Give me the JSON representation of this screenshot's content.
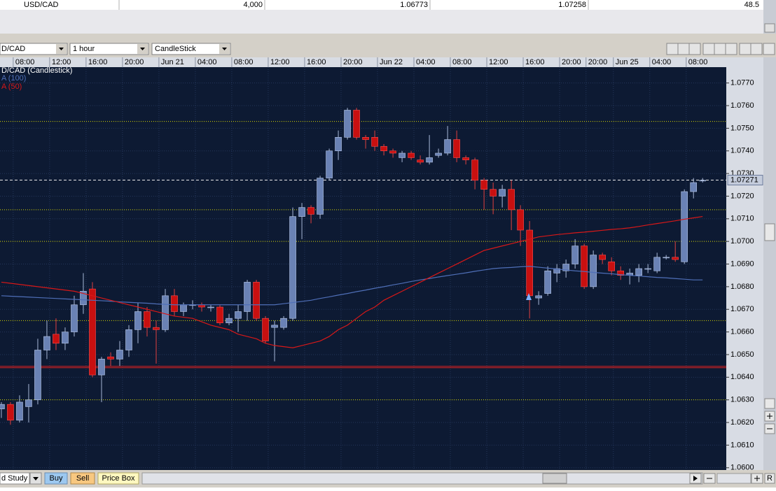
{
  "ticker": {
    "symbol": "USD/CAD",
    "amount": "4,000",
    "bid": "1.06773",
    "ask": "1.07258",
    "spread": "48.5"
  },
  "toolbar": {
    "symbol": "D/CAD",
    "interval": "1 hour",
    "chart_style": "CandleStick"
  },
  "bottom_bar": {
    "study": "d Study",
    "buy": "Buy",
    "sell": "Sell",
    "price_box": "Price Box",
    "reset": "R"
  },
  "chart_data": {
    "type": "candlestick",
    "series": [
      {
        "name": "D/CAD (Candlestick)",
        "up_color": "#6a82b5",
        "down_color": "#c81010",
        "open": [
          1.0626,
          1.0628,
          1.0621,
          1.0627,
          1.063,
          1.0652,
          1.0659,
          1.0655,
          1.066,
          1.0672,
          1.0679,
          1.0641,
          1.0649,
          1.0648,
          1.0652,
          1.0661,
          1.0669,
          1.0662,
          1.0661,
          1.0676,
          1.0669,
          1.0672,
          1.0672,
          1.0671,
          1.0671,
          1.0664,
          1.0666,
          1.0669,
          1.0682,
          1.0666,
          1.0662,
          1.0662,
          1.0666,
          1.0711,
          1.0715,
          1.0712,
          1.0728,
          1.074,
          1.0746,
          1.0758,
          1.0746,
          1.0746,
          1.0742,
          1.074,
          1.0737,
          1.0739,
          1.0736,
          1.0735,
          1.0738,
          1.0739,
          1.0745,
          1.0737,
          1.0736,
          1.0727,
          1.0723,
          1.072,
          1.0723,
          1.0714,
          1.0705,
          1.0675,
          1.0677,
          1.0686,
          1.0687,
          1.069,
          1.0698,
          1.068,
          1.0694,
          1.0691,
          1.0687,
          1.0685,
          1.0685,
          1.0688,
          1.0687,
          1.0693,
          1.0693,
          1.0691,
          1.0722,
          1.0727
        ],
        "high": [
          1.0629,
          1.0629,
          1.0632,
          1.0637,
          1.0657,
          1.0665,
          1.0666,
          1.0662,
          1.0676,
          1.0686,
          1.0682,
          1.0649,
          1.0651,
          1.0656,
          1.0663,
          1.0673,
          1.0671,
          1.0665,
          1.0679,
          1.0679,
          1.0673,
          1.0674,
          1.0673,
          1.0672,
          1.0672,
          1.0668,
          1.0672,
          1.0683,
          1.0683,
          1.0667,
          1.0665,
          1.0667,
          1.0715,
          1.0717,
          1.0716,
          1.0729,
          1.0741,
          1.0749,
          1.0759,
          1.0759,
          1.0747,
          1.0749,
          1.0743,
          1.0741,
          1.074,
          1.074,
          1.0738,
          1.0747,
          1.0741,
          1.0751,
          1.0749,
          1.0738,
          1.0737,
          1.0728,
          1.0726,
          1.0725,
          1.0727,
          1.0716,
          1.0709,
          1.0678,
          1.0689,
          1.069,
          1.0692,
          1.0701,
          1.0699,
          1.0696,
          1.0695,
          1.0693,
          1.0689,
          1.0688,
          1.069,
          1.069,
          1.0695,
          1.0694,
          1.07,
          1.0723,
          1.0728,
          1.0728
        ],
        "low": [
          1.0622,
          1.0619,
          1.062,
          1.062,
          1.0628,
          1.0648,
          1.0652,
          1.0652,
          1.0658,
          1.0668,
          1.064,
          1.0629,
          1.0645,
          1.0645,
          1.0649,
          1.0655,
          1.0658,
          1.0646,
          1.066,
          1.0667,
          1.0667,
          1.067,
          1.0669,
          1.0669,
          1.0663,
          1.0663,
          1.066,
          1.0665,
          1.0665,
          1.0655,
          1.0647,
          1.0661,
          1.0665,
          1.0701,
          1.0708,
          1.071,
          1.0727,
          1.0736,
          1.0745,
          1.0745,
          1.0741,
          1.074,
          1.0738,
          1.0737,
          1.0735,
          1.0736,
          1.0734,
          1.0734,
          1.0737,
          1.0738,
          1.0735,
          1.0734,
          1.0723,
          1.0714,
          1.0712,
          1.0715,
          1.0705,
          1.0698,
          1.0666,
          1.0672,
          1.0676,
          1.0682,
          1.0684,
          1.0688,
          1.0679,
          1.0679,
          1.069,
          1.0685,
          1.0683,
          1.0681,
          1.0682,
          1.0686,
          1.0686,
          1.0692,
          1.0691,
          1.069,
          1.0719,
          1.0726
        ],
        "close": [
          1.0628,
          1.0621,
          1.0629,
          1.063,
          1.0652,
          1.0658,
          1.0655,
          1.066,
          1.0672,
          1.0678,
          1.0641,
          1.0648,
          1.0648,
          1.0652,
          1.0661,
          1.0669,
          1.0662,
          1.0661,
          1.0676,
          1.0669,
          1.0672,
          1.0672,
          1.0671,
          1.0671,
          1.0664,
          1.0666,
          1.0669,
          1.0682,
          1.0666,
          1.0656,
          1.0663,
          1.0666,
          1.0711,
          1.0715,
          1.0712,
          1.0728,
          1.074,
          1.0746,
          1.0758,
          1.0746,
          1.0745,
          1.0742,
          1.074,
          1.0739,
          1.0739,
          1.0737,
          1.0735,
          1.0737,
          1.0739,
          1.0745,
          1.0737,
          1.0736,
          1.0727,
          1.0723,
          1.072,
          1.0723,
          1.0714,
          1.0705,
          1.0676,
          1.0676,
          1.0687,
          1.0688,
          1.069,
          1.0698,
          1.068,
          1.0694,
          1.0692,
          1.0687,
          1.0685,
          1.0686,
          1.0688,
          1.0688,
          1.0693,
          1.0693,
          1.0692,
          1.0722,
          1.0726,
          1.0727
        ]
      },
      {
        "name": "A (100)",
        "color": "#4f6fb8",
        "values": [
          1.0676,
          1.06758,
          1.06756,
          1.06754,
          1.06752,
          1.0675,
          1.06748,
          1.06746,
          1.06744,
          1.06742,
          1.0674,
          1.06738,
          1.06736,
          1.06733,
          1.06731,
          1.06729,
          1.06727,
          1.06724,
          1.06722,
          1.0672,
          1.0672,
          1.0672,
          1.0672,
          1.0672,
          1.0672,
          1.0672,
          1.0672,
          1.0672,
          1.0672,
          1.0672,
          1.0672,
          1.06725,
          1.0673,
          1.06735,
          1.0674,
          1.06748,
          1.06755,
          1.06763,
          1.0677,
          1.06778,
          1.06785,
          1.06793,
          1.068,
          1.06808,
          1.06815,
          1.06823,
          1.0683,
          1.06836,
          1.06843,
          1.06849,
          1.06855,
          1.06861,
          1.06868,
          1.06874,
          1.0688,
          1.06883,
          1.06885,
          1.06888,
          1.0689,
          1.06886,
          1.06882,
          1.06878,
          1.06874,
          1.0687,
          1.06867,
          1.06863,
          1.0686,
          1.06857,
          1.06853,
          1.0685,
          1.06847,
          1.06844,
          1.06841,
          1.06839,
          1.06836,
          1.06833,
          1.0683,
          1.0683
        ]
      },
      {
        "name": "A (50)",
        "color": "#d81818",
        "values": [
          1.0682,
          1.06815,
          1.0681,
          1.06805,
          1.068,
          1.06795,
          1.0679,
          1.06785,
          1.0678,
          1.0677,
          1.0676,
          1.0675,
          1.0674,
          1.0673,
          1.0672,
          1.0671,
          1.067,
          1.0669,
          1.0668,
          1.0667,
          1.06665,
          1.0666,
          1.06645,
          1.0663,
          1.0662,
          1.0661,
          1.0659,
          1.0658,
          1.0657,
          1.0655,
          1.0654,
          1.06535,
          1.0653,
          1.0654,
          1.0655,
          1.0656,
          1.0658,
          1.0661,
          1.0663,
          1.0666,
          1.0669,
          1.0671,
          1.0674,
          1.0676,
          1.0678,
          1.068,
          1.0682,
          1.0684,
          1.0686,
          1.0688,
          1.069,
          1.0692,
          1.0694,
          1.0696,
          1.0697,
          1.0698,
          1.0699,
          1.07,
          1.0701,
          1.0702,
          1.07025,
          1.0703,
          1.07034,
          1.07038,
          1.07041,
          1.07045,
          1.07049,
          1.07053,
          1.07056,
          1.0706,
          1.07066,
          1.07073,
          1.07079,
          1.07085,
          1.07091,
          1.07098,
          1.07104,
          1.0711
        ]
      }
    ],
    "last_price": 1.07271,
    "levels": [
      1.0753,
      1.0714,
      1.07,
      1.0665,
      1.063
    ],
    "level_color": "#d8d800",
    "support": 1.06445,
    "support_color": "#d82020",
    "xlim": [
      -0.15,
      79.6
    ],
    "xticks": [
      {
        "value": 1.3,
        "label": "08:00"
      },
      {
        "value": 5.3,
        "label": "12:00"
      },
      {
        "value": 9.3,
        "label": "16:00"
      },
      {
        "value": 13.3,
        "label": "20:00"
      },
      {
        "value": 17.3,
        "label": "Jun 21"
      },
      {
        "value": 21.3,
        "label": "04:00"
      },
      {
        "value": 25.3,
        "label": "08:00"
      },
      {
        "value": 29.3,
        "label": "12:00"
      },
      {
        "value": 33.3,
        "label": "16:00"
      },
      {
        "value": 37.3,
        "label": "20:00"
      },
      {
        "value": 41.3,
        "label": "Jun 22"
      },
      {
        "value": 45.3,
        "label": "04:00"
      },
      {
        "value": 49.3,
        "label": "08:00"
      },
      {
        "value": 53.3,
        "label": "12:00"
      },
      {
        "value": 57.3,
        "label": "16:00"
      },
      {
        "value": 61.3,
        "label": "20:00"
      },
      {
        "value": 64.2,
        "label": "20:00"
      },
      {
        "value": 67.2,
        "label": "Jun 25"
      },
      {
        "value": 71.2,
        "label": "04:00"
      },
      {
        "value": 75.2,
        "label": "08:00"
      }
    ],
    "ylim": [
      1.0599,
      1.0777
    ],
    "yticks": [
      {
        "value": 1.077,
        "label": "1.0770"
      },
      {
        "value": 1.076,
        "label": "1.0760"
      },
      {
        "value": 1.075,
        "label": "1.0750"
      },
      {
        "value": 1.074,
        "label": "1.0740"
      },
      {
        "value": 1.073,
        "label": "1.0730"
      },
      {
        "value": 1.072,
        "label": "1.0720"
      },
      {
        "value": 1.071,
        "label": "1.0710"
      },
      {
        "value": 1.07,
        "label": "1.0700"
      },
      {
        "value": 1.069,
        "label": "1.0690"
      },
      {
        "value": 1.068,
        "label": "1.0680"
      },
      {
        "value": 1.067,
        "label": "1.0670"
      },
      {
        "value": 1.066,
        "label": "1.0660"
      },
      {
        "value": 1.065,
        "label": "1.0650"
      },
      {
        "value": 1.064,
        "label": "1.0640"
      },
      {
        "value": 1.063,
        "label": "1.0630"
      },
      {
        "value": 1.062,
        "label": "1.0620"
      },
      {
        "value": 1.061,
        "label": "1.0610"
      },
      {
        "value": 1.06,
        "label": "1.0600"
      }
    ],
    "grid": true
  }
}
